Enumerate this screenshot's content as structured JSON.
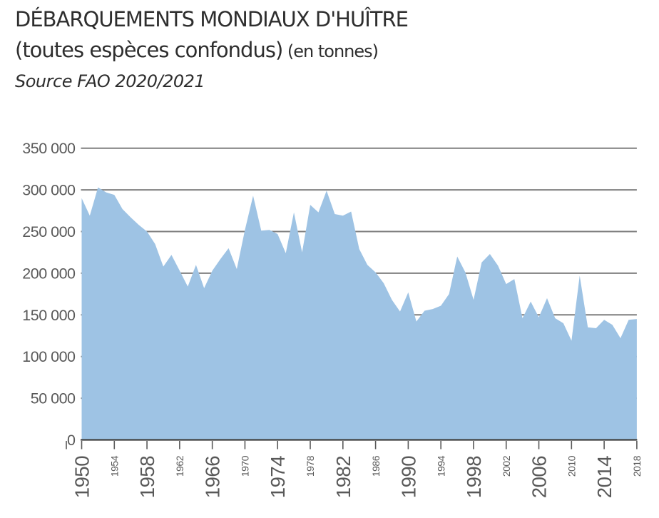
{
  "header": {
    "title_line1": "DÉBARQUEMENTS MONDIAUX D'HUÎTRE",
    "title_line2_main": "(toutes espèces confondus)",
    "title_line2_unit": " (en tonnes)",
    "source": "Source FAO 2020/2021"
  },
  "chart_data": {
    "type": "area",
    "title": "DÉBARQUEMENTS MONDIAUX D'HUÎTRE (toutes espèces confondus)",
    "unit": "tonnes",
    "xlabel": "",
    "ylabel": "",
    "legend": "none",
    "grid": "horizontal",
    "ylim": [
      0,
      350000
    ],
    "x": [
      1950,
      1951,
      1952,
      1953,
      1954,
      1955,
      1956,
      1957,
      1958,
      1959,
      1960,
      1961,
      1962,
      1963,
      1964,
      1965,
      1966,
      1967,
      1968,
      1969,
      1970,
      1971,
      1972,
      1973,
      1974,
      1975,
      1976,
      1977,
      1978,
      1979,
      1980,
      1981,
      1982,
      1983,
      1984,
      1985,
      1986,
      1987,
      1988,
      1989,
      1990,
      1991,
      1992,
      1993,
      1994,
      1995,
      1996,
      1997,
      1998,
      1999,
      2000,
      2001,
      2002,
      2003,
      2004,
      2005,
      2006,
      2007,
      2008,
      2009,
      2010,
      2011,
      2012,
      2013,
      2014,
      2015,
      2016,
      2017,
      2018
    ],
    "values": [
      290000,
      269000,
      303000,
      297000,
      294000,
      277000,
      267000,
      258000,
      250000,
      235000,
      208000,
      222000,
      203000,
      184000,
      210000,
      182000,
      203000,
      217000,
      230000,
      205000,
      252000,
      293000,
      251000,
      252000,
      247000,
      224000,
      273000,
      225000,
      282000,
      273000,
      299000,
      271000,
      269000,
      274000,
      229000,
      210000,
      201000,
      188000,
      168000,
      154000,
      177000,
      142000,
      155000,
      157000,
      161000,
      175000,
      220000,
      201000,
      168000,
      213000,
      223000,
      209000,
      187000,
      193000,
      146000,
      166000,
      147000,
      170000,
      146000,
      140000,
      119000,
      197000,
      135000,
      134000,
      144000,
      138000,
      122000,
      144000,
      145000
    ],
    "yticks": [
      {
        "value": 0,
        "label": "0"
      },
      {
        "value": 50000,
        "label": "50 000"
      },
      {
        "value": 100000,
        "label": "100 000"
      },
      {
        "value": 150000,
        "label": "150 000"
      },
      {
        "value": 200000,
        "label": "200 000"
      },
      {
        "value": 250000,
        "label": "250 000"
      },
      {
        "value": 300000,
        "label": "300 000"
      },
      {
        "value": 350000,
        "label": "350 000"
      }
    ],
    "xticks_major": [
      1950,
      1958,
      1966,
      1974,
      1982,
      1990,
      1998,
      2006,
      2014
    ],
    "xticks_minor": [
      1954,
      1962,
      1970,
      1978,
      1986,
      1994,
      2002,
      2010,
      2018
    ],
    "colors": {
      "area": "#9EC3E4",
      "gridline": "#7F7F7F",
      "baseline": "#404040",
      "tick": "#595959",
      "axis_label": "#595959",
      "title_text": "#2E2E2E"
    }
  }
}
